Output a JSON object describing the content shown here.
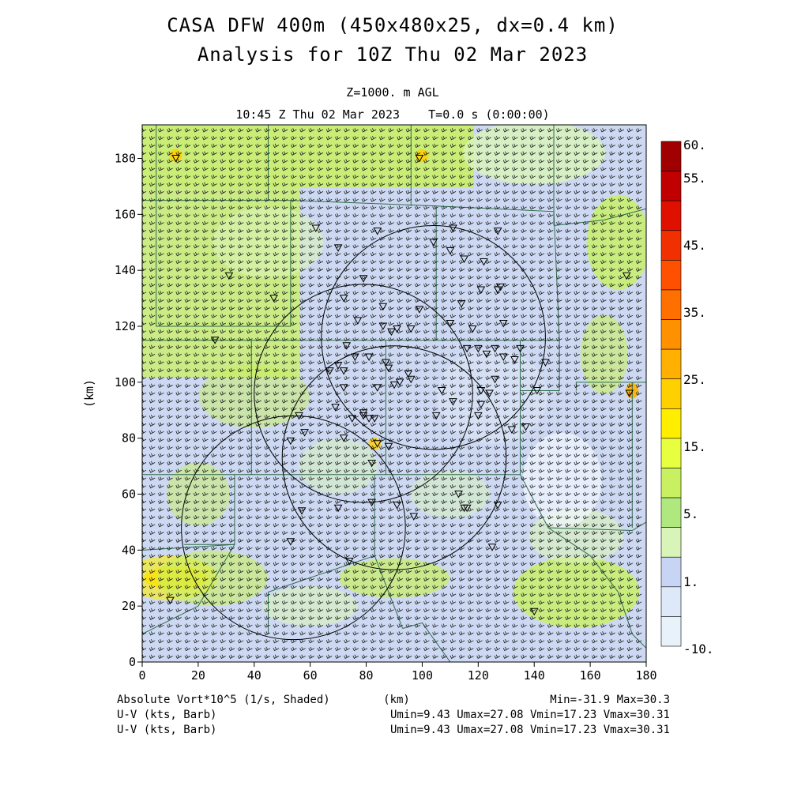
{
  "chart_data": {
    "type": "heatmap",
    "title": "CASA DFW 400m (450x480x25, dx=0.4 km)",
    "subtitle": "Analysis for 10Z Thu 02 Mar 2023",
    "level": "Z=1000. m AGL",
    "time": "10:45 Z Thu 02 Mar 2023    T=0.0 s (0:00:00)",
    "xlabel": "(km)",
    "ylabel": "(km)",
    "xlim": [
      0,
      180
    ],
    "ylim": [
      0,
      192
    ],
    "x_ticks": [
      "0",
      "20",
      "40",
      "60",
      "80",
      "100",
      "120",
      "140",
      "160",
      "180"
    ],
    "y_ticks": [
      "0",
      "20",
      "40",
      "60",
      "80",
      "100",
      "120",
      "140",
      "160",
      "180"
    ],
    "colorbar": {
      "labels": [
        "60.",
        "55.",
        "45.",
        "35.",
        "25.",
        "15.",
        "5.",
        "1.",
        "-10."
      ],
      "colors": [
        "#a00000",
        "#c00000",
        "#e01000",
        "#f03000",
        "#ff5000",
        "#ff7000",
        "#ff9000",
        "#ffb000",
        "#ffd000",
        "#ffee00",
        "#e8ff40",
        "#c8f060",
        "#b0e880",
        "#d8f4b8",
        "#c8d4f4",
        "#dde8f8",
        "#e8f2fb"
      ]
    },
    "radar_circles": [
      {
        "cx": 104,
        "cy": 116,
        "r": 40
      },
      {
        "cx": 79,
        "cy": 96,
        "r": 39
      },
      {
        "cx": 90,
        "cy": 73,
        "r": 40
      },
      {
        "cx": 54,
        "cy": 48,
        "r": 40
      }
    ],
    "annotation_left": [
      "Absolute Vort*10^5 (1/s, Shaded)",
      "U-V (kts, Barb)",
      "U-V (kts, Barb)"
    ],
    "annotation_center": "(km)",
    "annotation_right": [
      "Min=-31.9 Max=30.3",
      "Umin=9.43 Umax=27.08 Vmin=17.23 Vmax=30.31",
      "Umin=9.43 Umax=27.08 Vmin=17.23 Vmax=30.31"
    ]
  }
}
